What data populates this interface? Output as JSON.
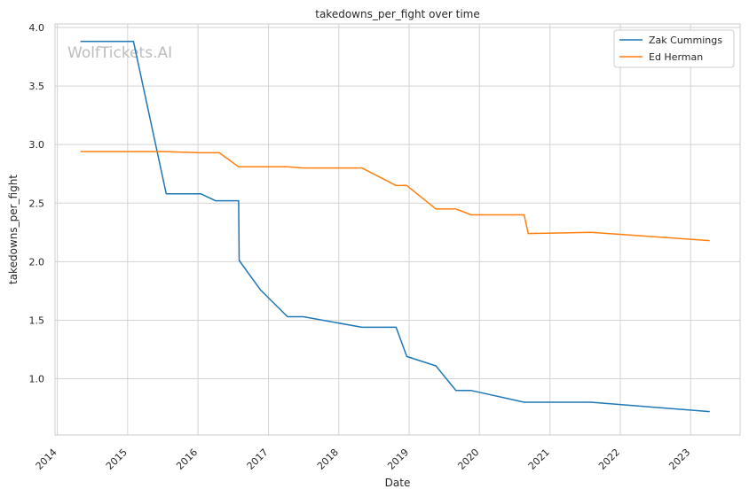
{
  "chart_data": {
    "type": "line",
    "title": "takedowns_per_fight over time",
    "xlabel": "Date",
    "ylabel": "takedowns_per_fight",
    "xlim": [
      "2013-12-20",
      "2023-09-15"
    ],
    "ylim": [
      0.52,
      4.03
    ],
    "x_ticks": [
      "2014",
      "2015",
      "2016",
      "2017",
      "2018",
      "2019",
      "2020",
      "2021",
      "2022",
      "2023"
    ],
    "y_ticks": [
      1.0,
      1.5,
      2.0,
      2.5,
      3.0,
      3.5,
      4.0
    ],
    "y_tick_labels": [
      "1.0",
      "1.5",
      "2.0",
      "2.5",
      "3.0",
      "3.5",
      "4.0"
    ],
    "grid": true,
    "legend_position": "top-right",
    "watermark": "WolfTickets.AI",
    "series": [
      {
        "name": "Zak Cummings",
        "color": "#1f77b4",
        "points": [
          [
            "2014-05-01",
            3.88
          ],
          [
            "2015-01-31",
            3.88
          ],
          [
            "2015-07-20",
            2.58
          ],
          [
            "2016-01-15",
            2.58
          ],
          [
            "2016-04-01",
            2.52
          ],
          [
            "2016-07-30",
            2.52
          ],
          [
            "2016-08-02",
            2.01
          ],
          [
            "2016-11-20",
            1.76
          ],
          [
            "2017-04-10",
            1.53
          ],
          [
            "2017-07-01",
            1.53
          ],
          [
            "2018-05-01",
            1.44
          ],
          [
            "2018-10-25",
            1.44
          ],
          [
            "2018-12-20",
            1.19
          ],
          [
            "2019-05-20",
            1.11
          ],
          [
            "2019-09-01",
            0.9
          ],
          [
            "2019-11-20",
            0.9
          ],
          [
            "2020-08-20",
            0.8
          ],
          [
            "2021-08-01",
            0.8
          ],
          [
            "2023-04-10",
            0.72
          ]
        ]
      },
      {
        "name": "Ed Herman",
        "color": "#ff7f0e",
        "points": [
          [
            "2014-05-01",
            2.94
          ],
          [
            "2015-07-10",
            2.94
          ],
          [
            "2016-01-10",
            2.93
          ],
          [
            "2016-04-20",
            2.93
          ],
          [
            "2016-07-30",
            2.81
          ],
          [
            "2017-04-10",
            2.81
          ],
          [
            "2017-07-01",
            2.8
          ],
          [
            "2018-05-01",
            2.8
          ],
          [
            "2018-10-25",
            2.65
          ],
          [
            "2018-12-20",
            2.65
          ],
          [
            "2019-05-20",
            2.45
          ],
          [
            "2019-09-01",
            2.45
          ],
          [
            "2019-11-20",
            2.4
          ],
          [
            "2020-08-20",
            2.4
          ],
          [
            "2020-09-10",
            2.24
          ],
          [
            "2021-08-01",
            2.25
          ],
          [
            "2023-04-10",
            2.18
          ]
        ]
      }
    ]
  }
}
